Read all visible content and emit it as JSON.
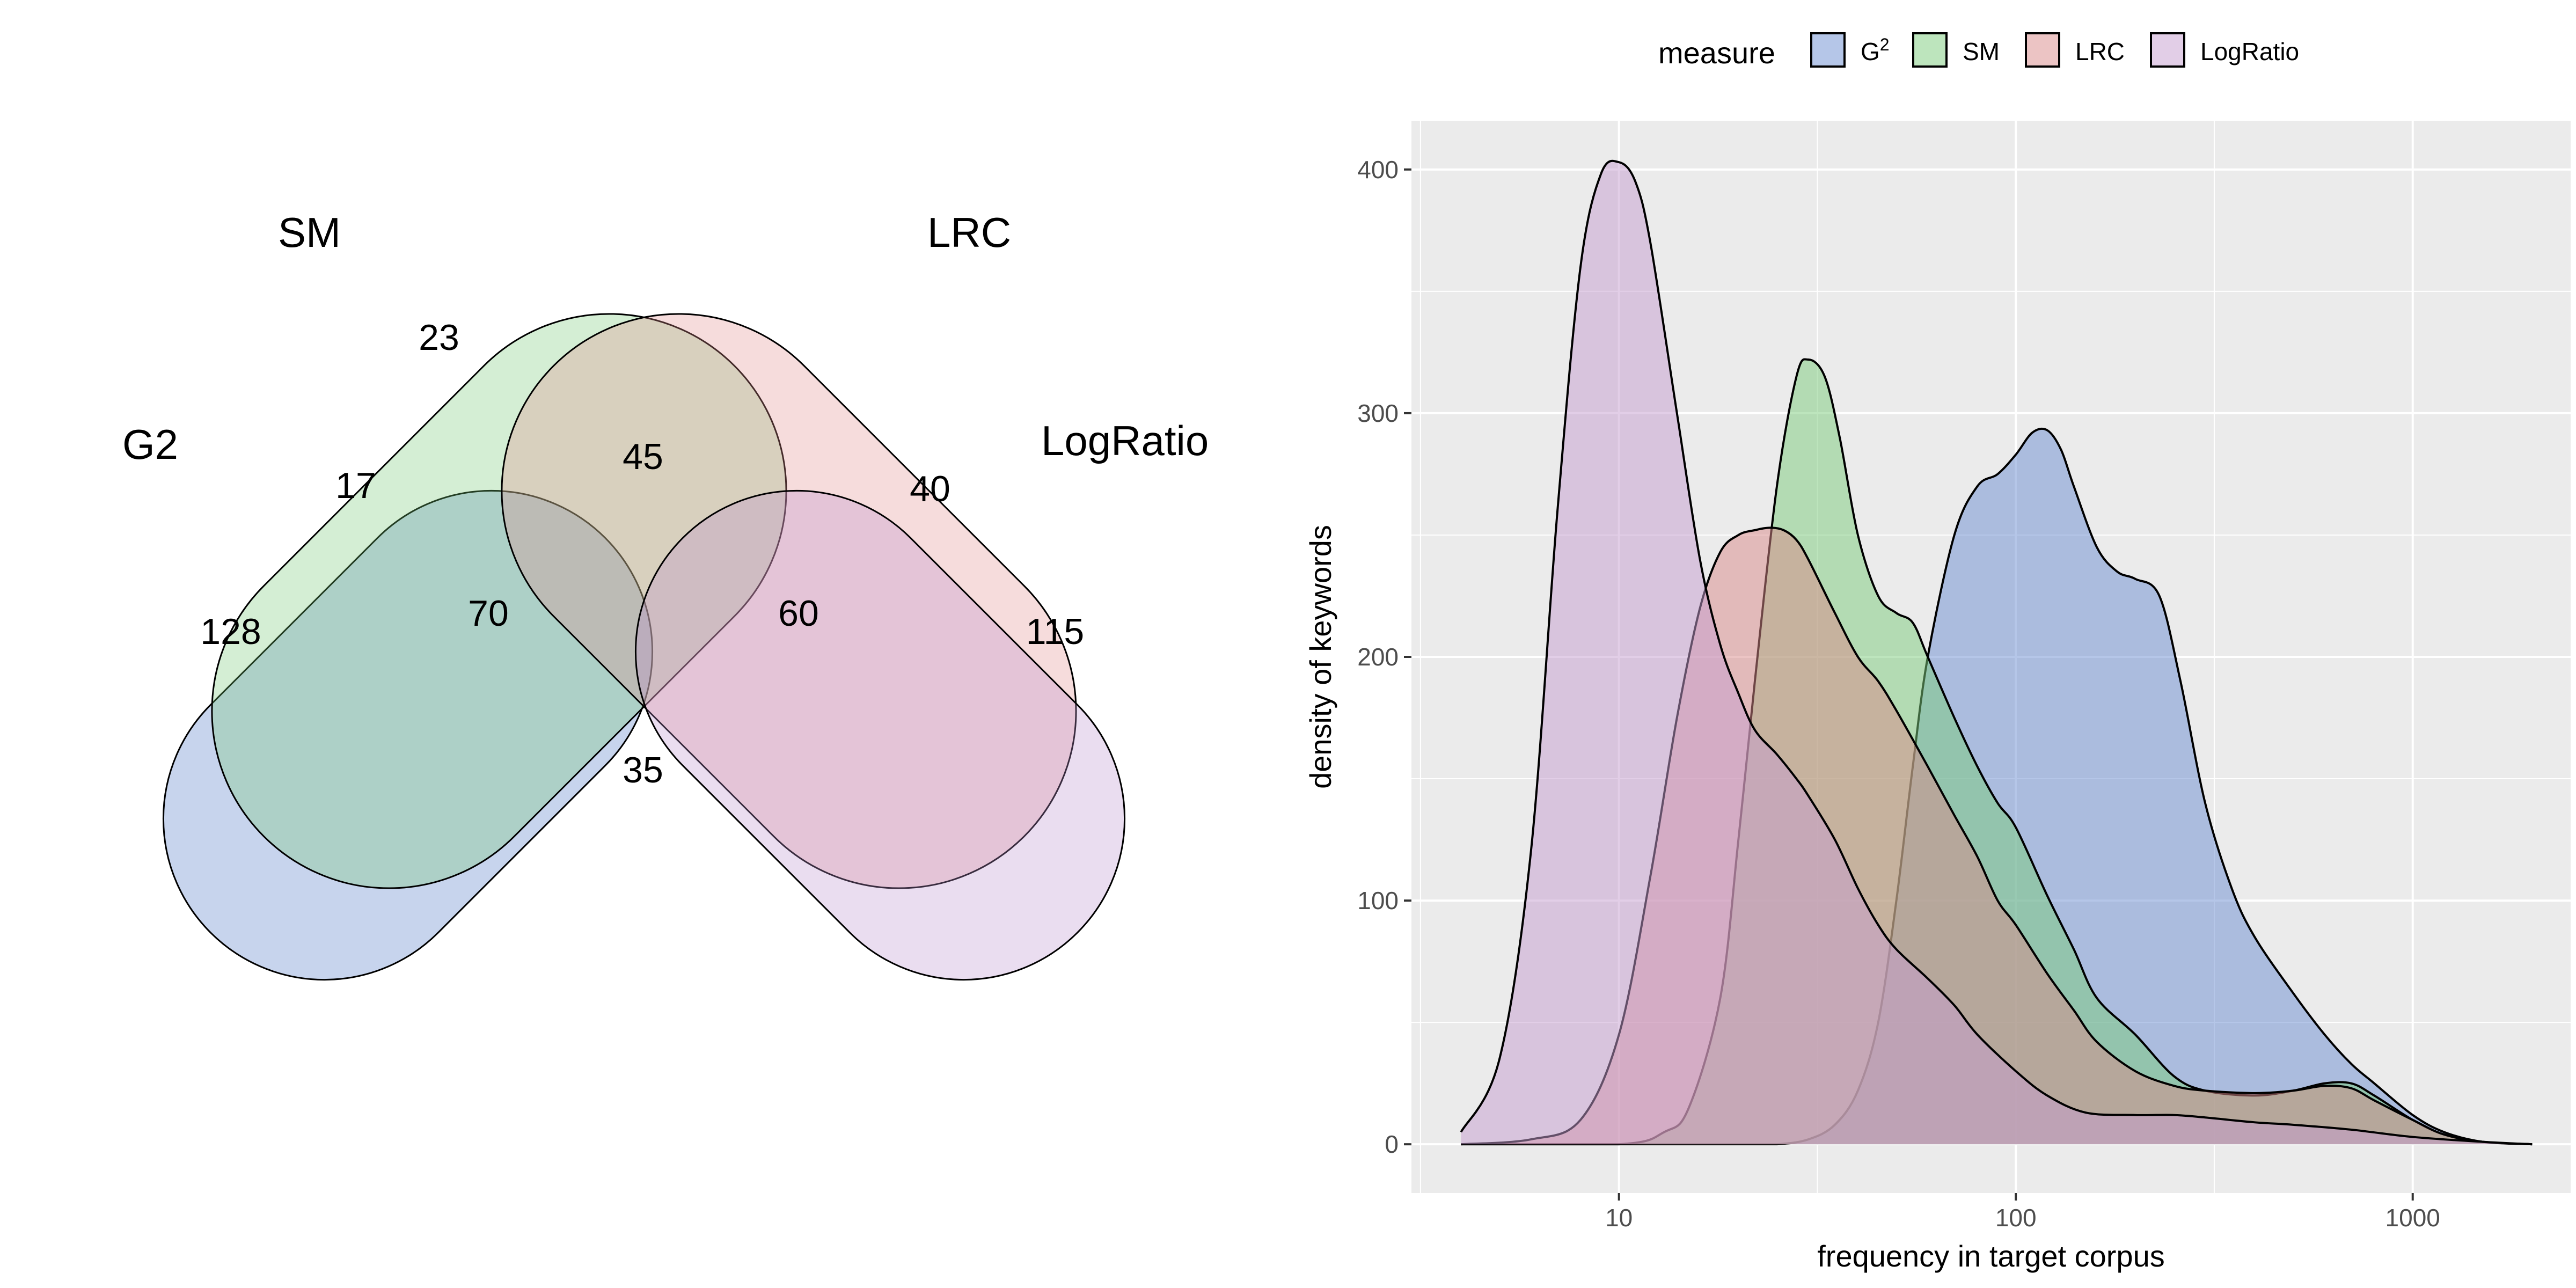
{
  "chart_data": [
    {
      "type": "venn",
      "sets": [
        {
          "name": "G2",
          "color": "#4472C4"
        },
        {
          "name": "SM",
          "color": "#70C870"
        },
        {
          "name": "LRC",
          "color": "#E08A8C"
        },
        {
          "name": "LogRatio",
          "color": "#B98DCC"
        }
      ],
      "regions": [
        {
          "sets": [
            "G2"
          ],
          "value": "128"
        },
        {
          "sets": [
            "SM"
          ],
          "value": "23"
        },
        {
          "sets": [
            "LRC"
          ],
          "value": ""
        },
        {
          "sets": [
            "LogRatio"
          ],
          "value": "115"
        },
        {
          "sets": [
            "G2",
            "SM"
          ],
          "value": "17"
        },
        {
          "sets": [
            "SM",
            "LRC"
          ],
          "value": "45"
        },
        {
          "sets": [
            "LRC",
            "LogRatio"
          ],
          "value": "40"
        },
        {
          "sets": [
            "G2",
            "SM",
            "LRC"
          ],
          "value": "70"
        },
        {
          "sets": [
            "SM",
            "LRC",
            "LogRatio"
          ],
          "value": "60"
        },
        {
          "sets": [
            "G2",
            "SM",
            "LRC",
            "LogRatio"
          ],
          "value": "35"
        }
      ]
    },
    {
      "type": "area",
      "subtype": "density",
      "xlabel": "frequency in target corpus",
      "ylabel": "density of keywords",
      "x_scale": "log10",
      "xlim": [
        3,
        2500
      ],
      "ylim": [
        -20,
        420
      ],
      "x_ticks": [
        "10",
        "100",
        "1000"
      ],
      "y_ticks": [
        "0",
        "100",
        "200",
        "300",
        "400"
      ],
      "grid": true,
      "legend": {
        "title": "measure",
        "position": "top"
      },
      "series": [
        {
          "name": "G²",
          "legend_label": "G",
          "legend_sup": "2",
          "color": "#6C8ED1",
          "x": [
            4,
            10,
            15,
            20,
            25,
            30,
            35,
            40,
            45,
            50,
            55,
            60,
            70,
            80,
            90,
            100,
            110,
            120,
            130,
            140,
            160,
            180,
            200,
            230,
            260,
            300,
            350,
            400,
            500,
            600,
            700,
            800,
            1000,
            1200,
            1500,
            2000
          ],
          "y": [
            0,
            0,
            0,
            0,
            0,
            2,
            8,
            22,
            50,
            100,
            155,
            200,
            250,
            270,
            275,
            283,
            292,
            293,
            285,
            270,
            245,
            235,
            232,
            225,
            190,
            140,
            105,
            85,
            62,
            45,
            33,
            25,
            12,
            5,
            1,
            0
          ]
        },
        {
          "name": "SM",
          "color": "#7BCB7B",
          "x": [
            4,
            10,
            13,
            15,
            18,
            20,
            22,
            25,
            28,
            30,
            33,
            36,
            40,
            45,
            50,
            55,
            60,
            70,
            80,
            90,
            100,
            120,
            140,
            160,
            200,
            250,
            300,
            400,
            500,
            600,
            700,
            800,
            1000,
            1200,
            1500,
            2000
          ],
          "y": [
            0,
            0,
            5,
            15,
            60,
            125,
            190,
            270,
            315,
            322,
            315,
            290,
            250,
            225,
            218,
            214,
            200,
            175,
            155,
            140,
            130,
            102,
            80,
            60,
            45,
            28,
            22,
            20,
            22,
            25,
            25,
            20,
            10,
            4,
            1,
            0
          ]
        },
        {
          "name": "LRC",
          "color": "#D98A8A",
          "x": [
            4,
            6,
            8,
            10,
            12,
            14,
            16,
            18,
            20,
            22,
            24,
            26,
            28,
            30,
            35,
            40,
            45,
            50,
            60,
            70,
            80,
            90,
            100,
            120,
            140,
            160,
            200,
            250,
            300,
            400,
            500,
            600,
            700,
            800,
            1000,
            1200,
            1500,
            2000
          ],
          "y": [
            0,
            2,
            10,
            45,
            110,
            175,
            220,
            243,
            250,
            252,
            253,
            252,
            248,
            240,
            218,
            200,
            190,
            178,
            155,
            135,
            118,
            100,
            90,
            70,
            55,
            42,
            30,
            24,
            22,
            21,
            22,
            24,
            23,
            18,
            10,
            4,
            1,
            0
          ]
        },
        {
          "name": "LogRatio",
          "color": "#C69ECF",
          "x": [
            4,
            5,
            6,
            7,
            8,
            9,
            10,
            11,
            12,
            14,
            16,
            18,
            20,
            22,
            25,
            28,
            30,
            35,
            40,
            45,
            50,
            60,
            70,
            80,
            100,
            120,
            150,
            200,
            250,
            300,
            400,
            500,
            700,
            1000,
            1500,
            2000
          ],
          "y": [
            5,
            35,
            120,
            260,
            360,
            398,
            403,
            395,
            370,
            300,
            240,
            205,
            185,
            170,
            160,
            150,
            143,
            125,
            105,
            90,
            80,
            68,
            57,
            45,
            30,
            20,
            13,
            12,
            12,
            11,
            9,
            8,
            6,
            3,
            1,
            0
          ]
        }
      ]
    }
  ]
}
